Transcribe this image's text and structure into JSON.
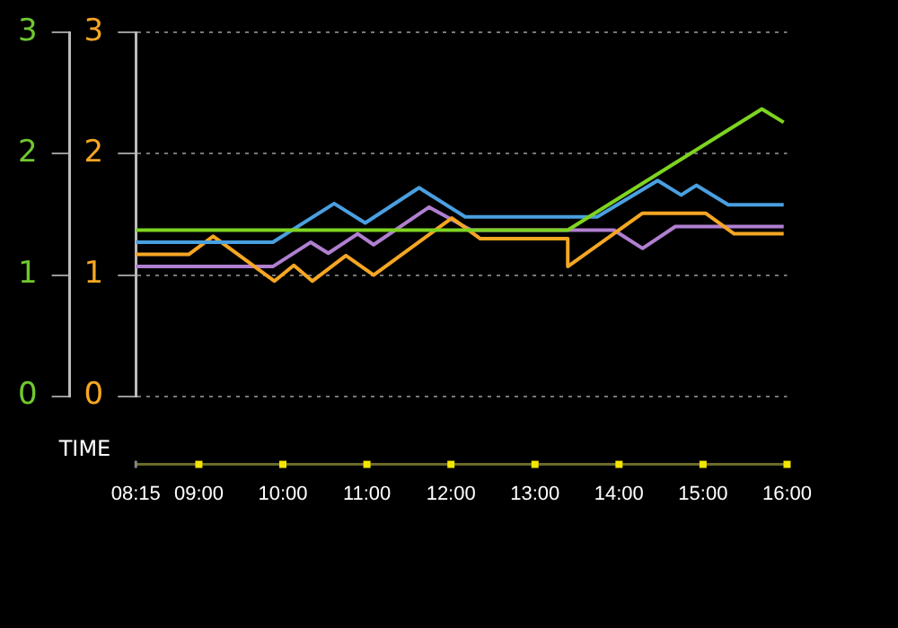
{
  "chart_data": {
    "type": "line",
    "xlabel": "TIME",
    "xlim": [
      8.25,
      16
    ],
    "xticks": [
      {
        "value": 8.25,
        "label": "08:15"
      },
      {
        "value": 9,
        "label": "09:00"
      },
      {
        "value": 10,
        "label": "10:00"
      },
      {
        "value": 11,
        "label": "11:00"
      },
      {
        "value": 12,
        "label": "12:00"
      },
      {
        "value": 13,
        "label": "13:00"
      },
      {
        "value": 14,
        "label": "14:00"
      },
      {
        "value": 15,
        "label": "15:00"
      },
      {
        "value": 16,
        "label": "16:00"
      }
    ],
    "ylim": [
      0,
      3
    ],
    "yticks": [
      0,
      1,
      2,
      3
    ],
    "y2lim": [
      0,
      3
    ],
    "y2ticks": [
      0,
      1,
      2,
      3
    ],
    "grid": "y",
    "legend": false,
    "marker": "none",
    "line_style": "solid",
    "series": [
      {
        "color": "#7ed321",
        "x": [
          8.25,
          13.39,
          15.7,
          15.96
        ],
        "values": [
          1.37,
          1.37,
          2.37,
          2.26
        ]
      },
      {
        "color": "#4a9fe0",
        "x": [
          8.25,
          9.88,
          10.61,
          10.98,
          11.62,
          12.17,
          13.74,
          14.46,
          14.74,
          14.92,
          15.3,
          15.96
        ],
        "values": [
          1.27,
          1.27,
          1.59,
          1.43,
          1.72,
          1.48,
          1.48,
          1.78,
          1.66,
          1.74,
          1.58,
          1.58
        ]
      },
      {
        "color": "#f5a623",
        "x": [
          8.25,
          8.88,
          9.17,
          9.9,
          10.13,
          10.35,
          10.75,
          11.08,
          12.01,
          12.35,
          13.39,
          13.39,
          14.28,
          15.03,
          15.37,
          15.96
        ],
        "values": [
          1.17,
          1.17,
          1.32,
          0.95,
          1.08,
          0.95,
          1.16,
          1.0,
          1.47,
          1.3,
          1.3,
          1.07,
          1.51,
          1.51,
          1.34,
          1.34
        ]
      },
      {
        "color": "#b07fd0",
        "x": [
          8.25,
          9.88,
          10.33,
          10.54,
          10.89,
          11.08,
          11.74,
          12.24,
          13.94,
          14.28,
          14.67,
          15.96
        ],
        "values": [
          1.07,
          1.07,
          1.27,
          1.18,
          1.34,
          1.25,
          1.56,
          1.37,
          1.37,
          1.22,
          1.4,
          1.4
        ]
      }
    ]
  }
}
